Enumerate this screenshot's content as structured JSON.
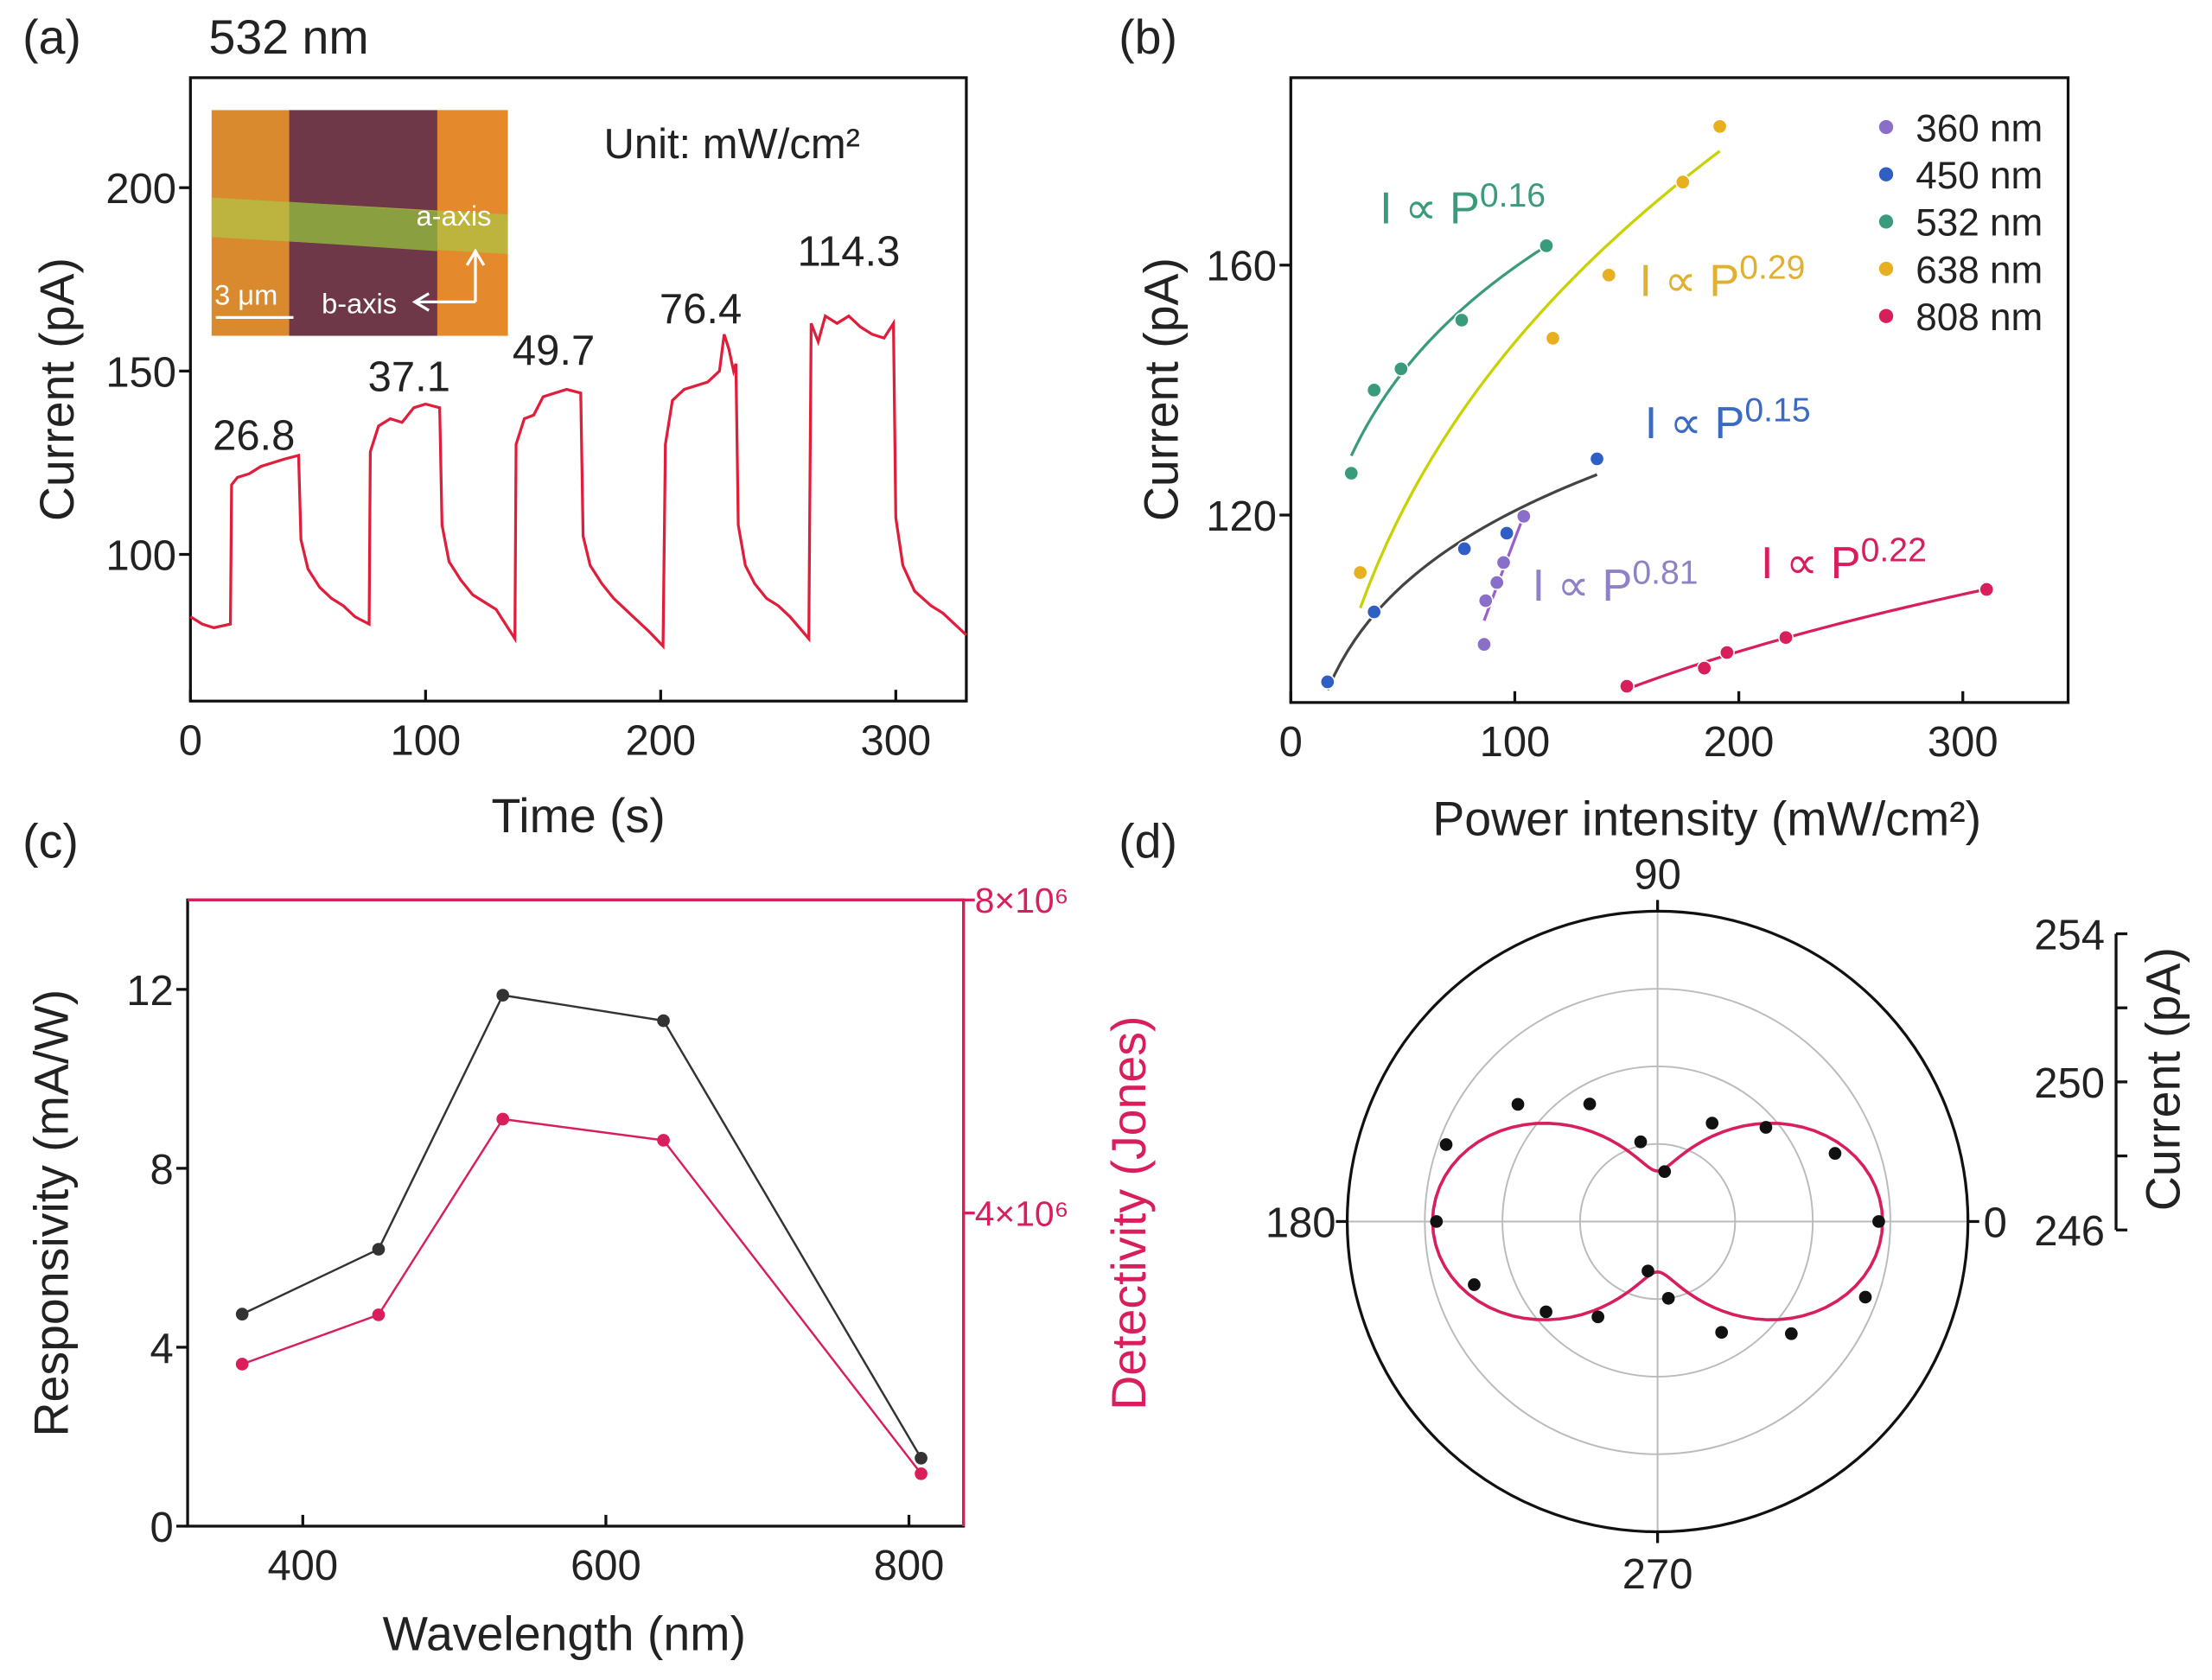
{
  "panels": {
    "a": "(a)",
    "b": "(b)",
    "c": "(c)",
    "d": "(d)"
  },
  "chart_data": [
    {
      "type": "line",
      "title": "532 nm",
      "xlabel": "Time (s)",
      "ylabel": "Current (pA)",
      "xlim": [
        0,
        330
      ],
      "ylim": [
        60,
        230
      ],
      "xticks": [
        0,
        100,
        200,
        300
      ],
      "yticks": [
        100,
        150,
        200
      ],
      "annotation": "Unit: mW/cm²",
      "power_labels": [
        "26.8",
        "37.1",
        "49.7",
        "76.4",
        "114.3"
      ],
      "inset": {
        "a_axis": "a-axis",
        "b_axis": "b-axis",
        "scale": "3 μm"
      },
      "series": [
        {
          "color": "#e01e3c",
          "points": [
            [
              0,
              83
            ],
            [
              5,
              81
            ],
            [
              10,
              80
            ],
            [
              17,
              81
            ],
            [
              17.5,
              119
            ],
            [
              20,
              121
            ],
            [
              25,
              122
            ],
            [
              30,
              124
            ],
            [
              35,
              125
            ],
            [
              40,
              126
            ],
            [
              46,
              127
            ],
            [
              47,
              104
            ],
            [
              50,
              96
            ],
            [
              55,
              91
            ],
            [
              60,
              88
            ],
            [
              65,
              86
            ],
            [
              70,
              83
            ],
            [
              76,
              81
            ],
            [
              76.5,
              128
            ],
            [
              80,
              135
            ],
            [
              85,
              137
            ],
            [
              90,
              136
            ],
            [
              95,
              140
            ],
            [
              100,
              141
            ],
            [
              106,
              140
            ],
            [
              107,
              108
            ],
            [
              110,
              98
            ],
            [
              115,
              93
            ],
            [
              120,
              89
            ],
            [
              125,
              87
            ],
            [
              130,
              85
            ],
            [
              138,
              77
            ],
            [
              138.5,
              130
            ],
            [
              142,
              137
            ],
            [
              146,
              138
            ],
            [
              150,
              143
            ],
            [
              155,
              144
            ],
            [
              160,
              145
            ],
            [
              166,
              144
            ],
            [
              167,
              105
            ],
            [
              170,
              97
            ],
            [
              175,
              92
            ],
            [
              180,
              88
            ],
            [
              185,
              85
            ],
            [
              190,
              82
            ],
            [
              195,
              79
            ],
            [
              201,
              75
            ],
            [
              202,
              130
            ],
            [
              205,
              142
            ],
            [
              210,
              145
            ],
            [
              215,
              146
            ],
            [
              220,
              147
            ],
            [
              225,
              150
            ],
            [
              227,
              160
            ],
            [
              229,
              156
            ],
            [
              231,
              150
            ],
            [
              232,
              152
            ],
            [
              233,
              108
            ],
            [
              236,
              97
            ],
            [
              240,
              92
            ],
            [
              245,
              88
            ],
            [
              250,
              86
            ],
            [
              255,
              83
            ],
            [
              263,
              77
            ],
            [
              264,
              163
            ],
            [
              267,
              158
            ],
            [
              270,
              165
            ],
            [
              275,
              163
            ],
            [
              280,
              165
            ],
            [
              285,
              162
            ],
            [
              290,
              160
            ],
            [
              295,
              159
            ],
            [
              299,
              163
            ],
            [
              300,
              110
            ],
            [
              303,
              97
            ],
            [
              308,
              90
            ],
            [
              315,
              86
            ],
            [
              320,
              84
            ],
            [
              330,
              78
            ]
          ]
        }
      ]
    },
    {
      "type": "scatter",
      "xlabel": "Power intensity (mW/cm²)",
      "ylabel": "Current (pA)",
      "xlim": [
        0,
        347
      ],
      "ylim": [
        90,
        190
      ],
      "xticks": [
        0,
        100,
        200,
        300
      ],
      "yticks": [
        120,
        160
      ],
      "legend": "top-right",
      "fit_prefix": "I ∝ P",
      "series": [
        {
          "name": "360 nm",
          "color": "#8a6fc8",
          "fit_color": "#9a5fc8",
          "label_color": "#9080c8",
          "exponent": "0.81",
          "x": [
            86.3,
            87,
            92,
            95,
            104
          ],
          "y": [
            99.3,
            106.3,
            109.2,
            112.4,
            119.8
          ]
        },
        {
          "name": "450 nm",
          "color": "#2f5fc4",
          "fit_color": "#444444",
          "label_color": "#3a6bc0",
          "exponent": "0.15",
          "x": [
            16.4,
            37.2,
            77.5,
            96.4,
            136.7
          ],
          "y": [
            93.3,
            104.5,
            114.6,
            117.1,
            129.0
          ]
        },
        {
          "name": "532 nm",
          "color": "#3a9b7c",
          "fit_color": "#3a9b7c",
          "label_color": "#3a9b7c",
          "exponent": "0.16",
          "x": [
            27,
            37.2,
            49.2,
            76.3,
            114.1
          ],
          "y": [
            126.7,
            140.0,
            143.4,
            151.2,
            163.1
          ]
        },
        {
          "name": "638 nm",
          "color": "#e8b020",
          "fit_color": "#c8d200",
          "label_color": "#e0b030",
          "exponent": "0.29",
          "x": [
            31,
            117,
            142,
            175,
            191.5
          ],
          "y": [
            110.8,
            148.3,
            158.4,
            173.3,
            182.2
          ]
        },
        {
          "name": "808 nm",
          "color": "#d81e5b",
          "fit_color": "#d81e5b",
          "label_color": "#d81e5b",
          "exponent": "0.22",
          "x": [
            150,
            184.6,
            194.7,
            221,
            310.6
          ],
          "y": [
            92.6,
            95.5,
            98.0,
            100.4,
            108.1
          ]
        }
      ]
    },
    {
      "type": "line",
      "xlabel": "Wavelength (nm)",
      "ylabel": "Responsivity (mA/W)",
      "y2label": "Detectivity (Jones)",
      "xlim": [
        324,
        836
      ],
      "ylim": [
        0,
        14
      ],
      "y2lim": [
        0,
        8000000
      ],
      "xticks": [
        400,
        600,
        800
      ],
      "yticks": [
        0,
        4,
        8,
        12
      ],
      "y2ticks": [
        "4×10⁶",
        "8×10⁶"
      ],
      "y2tick_values": [
        4000000,
        8000000
      ],
      "x": [
        360,
        450,
        532,
        638,
        808
      ],
      "series": [
        {
          "axis": "left",
          "color": "#333333",
          "values": [
            4.74,
            6.19,
            11.87,
            11.3,
            1.52
          ]
        },
        {
          "axis": "right",
          "color": "#d81e5b",
          "values": [
            2070000,
            2700000,
            5200000,
            4930000,
            670000
          ]
        }
      ]
    },
    {
      "type": "polar",
      "ylabel": "Current (pA)",
      "rlim": [
        246,
        254
      ],
      "rticks": [
        246,
        250,
        254
      ],
      "angle_labels": [
        "0",
        "90",
        "180",
        "270"
      ],
      "point_color": "#111111",
      "fit_color": "#d81e5b",
      "angles": [
        0,
        21,
        41,
        61,
        82,
        102,
        120,
        140,
        160,
        180,
        199,
        219,
        238,
        259,
        278,
        300,
        320,
        340
      ],
      "values": [
        251.7,
        250.9,
        249.7,
        248.9,
        247.3,
        248.1,
        249.5,
        250.7,
        251.8,
        251.7,
        251.0,
        249.7,
        248.9,
        247.3,
        248.0,
        249.3,
        250.5,
        251.7
      ]
    }
  ]
}
